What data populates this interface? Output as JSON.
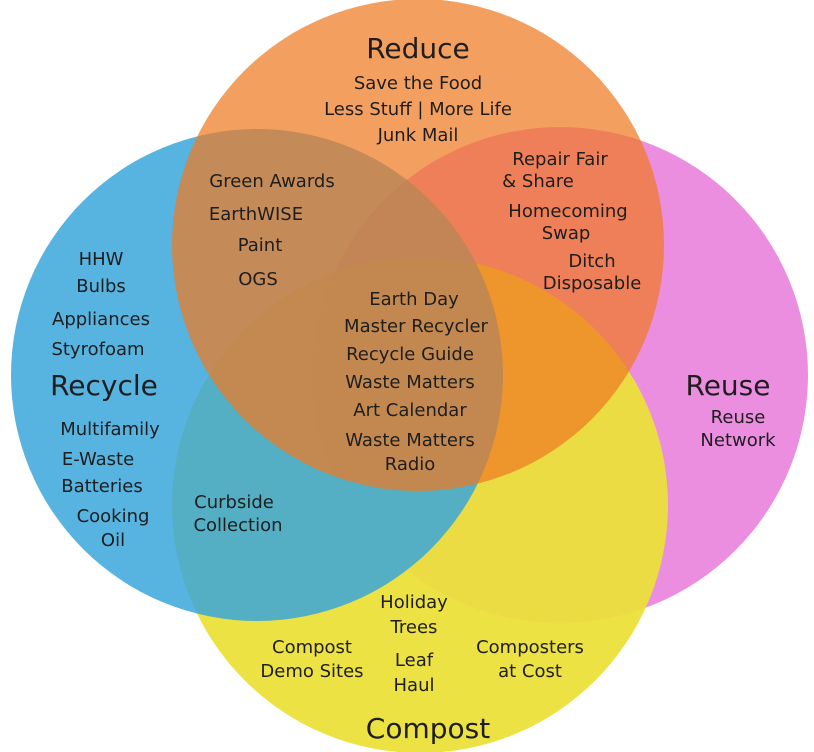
{
  "circles": {
    "reduce": "Reduce",
    "recycle": "Recycle",
    "reuse": "Reuse",
    "compost": "Compost"
  },
  "regions": {
    "reduce_only": [
      "Save the Food",
      "Less Stuff | More Life",
      "Junk Mail"
    ],
    "reduce_reuse": [
      "Repair Fair",
      "& Share",
      "Homecoming",
      "Swap",
      "Ditch",
      "Disposable"
    ],
    "reduce_recycle": [
      "Green Awards",
      "EarthWISE",
      "Paint",
      "OGS"
    ],
    "center": [
      "Earth Day",
      "Master Recycler",
      "Recycle Guide",
      "Waste Matters",
      "Art Calendar",
      "Waste Matters",
      "Radio"
    ],
    "recycle_only": [
      "HHW",
      "Bulbs",
      "Appliances",
      "Styrofoam",
      "Multifamily",
      "E-Waste",
      "Batteries",
      "Cooking",
      "Oil"
    ],
    "reuse_only": [
      "Reuse",
      "Network"
    ],
    "recycle_compost": [
      "Curbside",
      "Collection"
    ],
    "compost_only": [
      "Holiday",
      "Trees",
      "Compost",
      "Demo Sites",
      "Leaf",
      "Haul",
      "Composters",
      "at Cost"
    ]
  }
}
